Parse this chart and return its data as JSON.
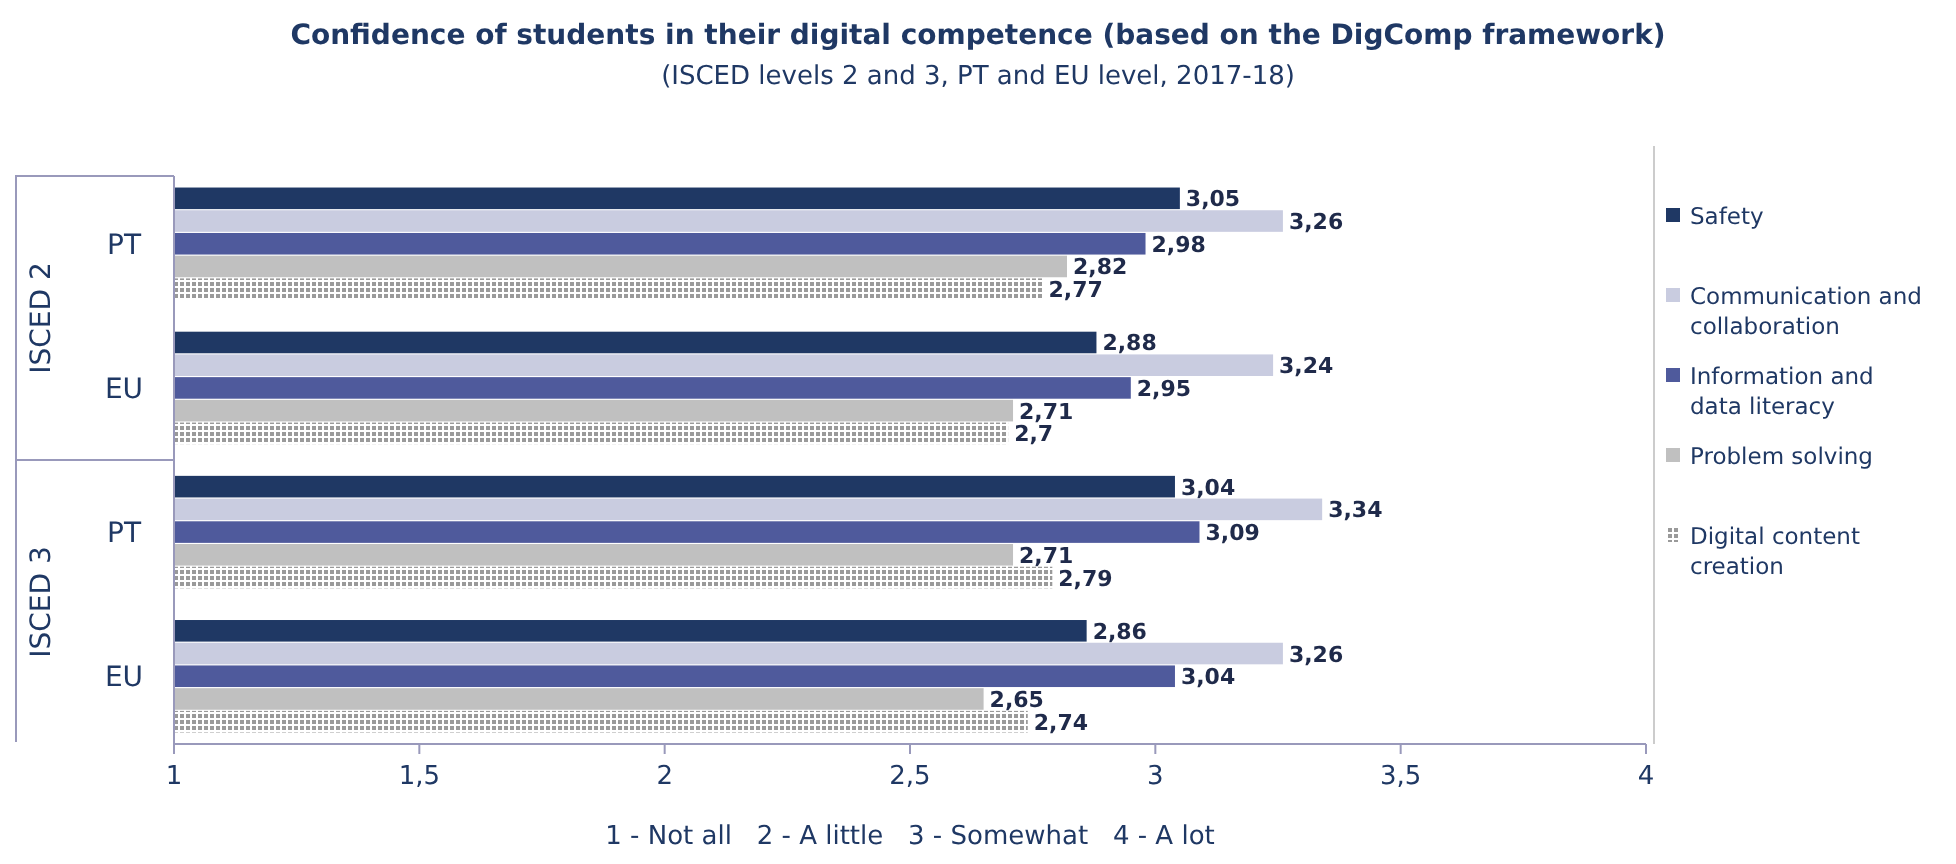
{
  "chart_data": {
    "type": "bar",
    "orientation": "horizontal",
    "title": "Confidence of students in their digital competence (based on the DigComp framework)",
    "subtitle": "(ISCED levels 2 and 3, PT and EU level, 2017-18)",
    "xlabel": "1 - Not all   2 - A little   3 - Somewhat   4 - A lot",
    "categories": [
      "PT",
      "EU",
      "PT",
      "EU"
    ],
    "annotations": [
      "ISCED 2",
      "ISCED 3"
    ],
    "xlim": [
      1,
      4
    ],
    "xticks": [
      1,
      {
        "value": 1.5,
        "label": "1,5"
      },
      2,
      {
        "value": 2.5,
        "label": "2,5"
      },
      3,
      {
        "value": 3.5,
        "label": "3,5"
      },
      4
    ],
    "series": [
      {
        "name": "Safety",
        "color": "#1f3864",
        "values": [
          3.05,
          2.88,
          3.04,
          2.86
        ],
        "value_labels": [
          "3,05",
          "2,88",
          "3,04",
          "2,86"
        ]
      },
      {
        "name": "Communication and collaboration",
        "color": "#c9cce0",
        "values": [
          3.26,
          3.24,
          3.34,
          3.26
        ],
        "value_labels": [
          "3,26",
          "3,24",
          "3,34",
          "3,26"
        ]
      },
      {
        "name": "Information and data literacy",
        "color": "#4f5a9c",
        "values": [
          2.98,
          2.95,
          3.09,
          3.04
        ],
        "value_labels": [
          "2,98",
          "2,95",
          "3,09",
          "3,04"
        ]
      },
      {
        "name": "Problem solving",
        "color": "#c0c0c0",
        "values": [
          2.82,
          2.71,
          2.71,
          2.65
        ],
        "value_labels": [
          "2,82",
          "2,71",
          "2,71",
          "2,65"
        ]
      },
      {
        "name": "Digital content creation",
        "color": "#9a9a9a",
        "values": [
          2.77,
          2.7,
          2.79,
          2.74
        ],
        "value_labels": [
          "2,77",
          "2,7",
          "2,79",
          "2,74"
        ]
      }
    ],
    "legend": "right",
    "grid": false
  }
}
